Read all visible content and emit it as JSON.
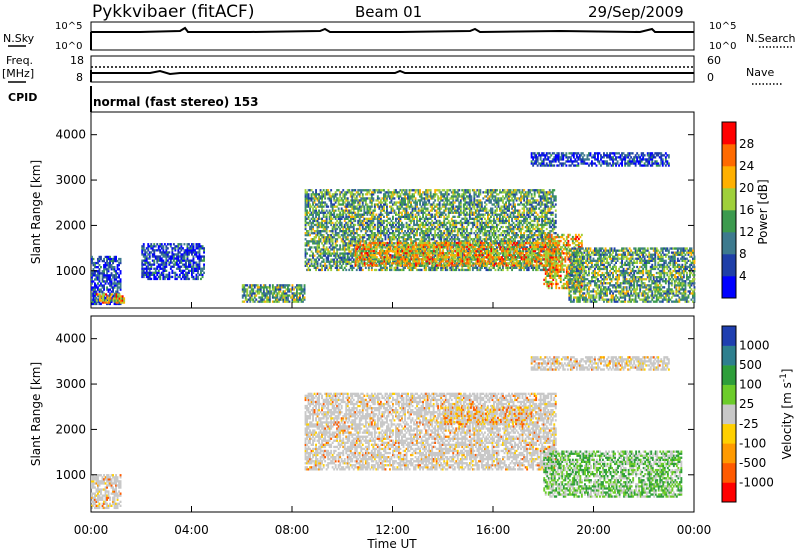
{
  "header": {
    "station": "Pykkvibaer (fitACF)",
    "beam": "Beam 01",
    "date": "29/Sep/2009"
  },
  "noise_panel": {
    "left_label": "N.Sky",
    "right_label": "N.Search",
    "left_ticks": [
      "10^5",
      "10^0"
    ],
    "right_ticks": [
      "10^5",
      "10^0"
    ]
  },
  "freq_panel": {
    "left_label_1": "Freq.",
    "left_label_2": "[MHz]",
    "right_label": "Nave",
    "left_ticks": [
      "18",
      "8"
    ],
    "right_ticks": [
      "60",
      "0"
    ]
  },
  "cpid": {
    "label": "CPID",
    "text": "normal (fast stereo) 153"
  },
  "chart_data": [
    {
      "type": "heatmap",
      "name": "Power",
      "ylabel": "Slant Range [km]",
      "ylim": [
        180,
        4500
      ],
      "y_ticks": [
        "1000",
        "2000",
        "3000",
        "4000"
      ],
      "colorbar": {
        "label": "Power [dB]",
        "ticks": [
          "4",
          "8",
          "12",
          "16",
          "20",
          "24",
          "28"
        ],
        "colors": [
          "#0000ff",
          "#1f3fa8",
          "#3d7a8e",
          "#3c9a4e",
          "#9fd03a",
          "#ffb000",
          "#ff6a00",
          "#ff0000"
        ]
      },
      "regions": [
        {
          "t0": 0.0,
          "t1": 1.2,
          "r0": 250,
          "r1": 1300,
          "level": "low"
        },
        {
          "t0": 0.2,
          "t1": 1.3,
          "r0": 280,
          "r1": 480,
          "level": "high"
        },
        {
          "t0": 2.0,
          "t1": 4.5,
          "r0": 800,
          "r1": 1600,
          "level": "low"
        },
        {
          "t0": 6.0,
          "t1": 8.5,
          "r0": 300,
          "r1": 700,
          "level": "mid"
        },
        {
          "t0": 8.5,
          "t1": 18.5,
          "r0": 1000,
          "r1": 2800,
          "level": "mid"
        },
        {
          "t0": 10.5,
          "t1": 18.5,
          "r0": 1100,
          "r1": 1600,
          "level": "high"
        },
        {
          "t0": 18.0,
          "t1": 19.5,
          "r0": 600,
          "r1": 1800,
          "level": "high"
        },
        {
          "t0": 19.0,
          "t1": 24.0,
          "r0": 300,
          "r1": 1500,
          "level": "mid"
        },
        {
          "t0": 17.5,
          "t1": 23.0,
          "r0": 3300,
          "r1": 3600,
          "level": "low"
        }
      ]
    },
    {
      "type": "heatmap",
      "name": "Velocity",
      "ylabel": "Slant Range [km]",
      "xlabel": "Time UT",
      "x_ticks": [
        "00:00",
        "04:00",
        "08:00",
        "12:00",
        "16:00",
        "20:00",
        "00:00"
      ],
      "ylim": [
        180,
        4500
      ],
      "y_ticks": [
        "1000",
        "2000",
        "3000",
        "4000"
      ],
      "colorbar": {
        "label": "Velocity [m s^-1]",
        "ticks": [
          "1000",
          "500",
          "100",
          "25",
          "-25",
          "-100",
          "-500",
          "-1000"
        ],
        "colors": [
          "#1f3fb0",
          "#2e7f8e",
          "#2e9e3a",
          "#6ccc2a",
          "#c8c8c8",
          "#ffd000",
          "#ff9a00",
          "#ff5a00",
          "#ff0000"
        ]
      },
      "regions": [
        {
          "t0": 0.0,
          "t1": 1.2,
          "r0": 250,
          "r1": 1000,
          "level": "ground"
        },
        {
          "t0": 8.5,
          "t1": 18.5,
          "r0": 1100,
          "r1": 2800,
          "level": "ground"
        },
        {
          "t0": 14.0,
          "t1": 17.5,
          "r0": 2100,
          "r1": 2500,
          "level": "neg"
        },
        {
          "t0": 18.0,
          "t1": 23.5,
          "r0": 500,
          "r1": 1500,
          "level": "pos"
        },
        {
          "t0": 17.5,
          "t1": 23.0,
          "r0": 3300,
          "r1": 3600,
          "level": "ground"
        }
      ]
    }
  ]
}
